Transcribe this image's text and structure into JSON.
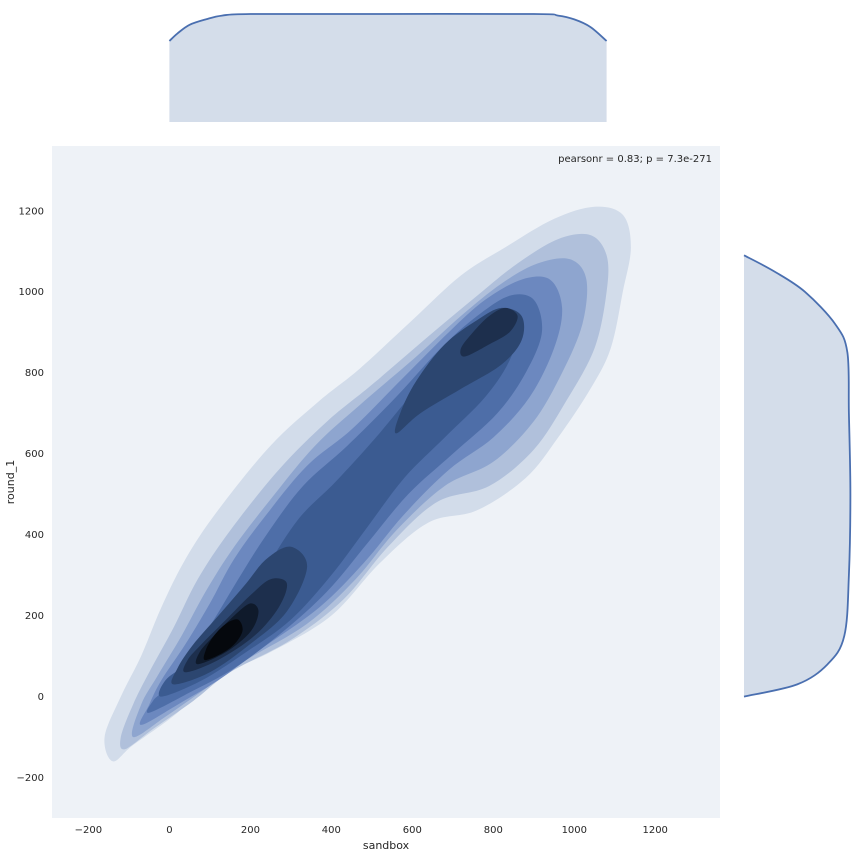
{
  "chart_data": {
    "type": "kde-joint",
    "annotation": "pearsonr = 0.83; p = 7.3e-271",
    "xlabel": "sandbox",
    "ylabel": "round_1",
    "xlim": [
      -290,
      1360
    ],
    "ylim": [
      -300,
      1360
    ],
    "x_ticks": [
      -200,
      0,
      200,
      400,
      600,
      800,
      1000,
      1200
    ],
    "y_ticks": [
      -200,
      0,
      200,
      400,
      600,
      800,
      1000,
      1200
    ],
    "x_tick_labels": [
      "−200",
      "0",
      "200",
      "400",
      "600",
      "800",
      "1000",
      "1200"
    ],
    "y_tick_labels": [
      "−200",
      "0",
      "200",
      "400",
      "600",
      "800",
      "1000",
      "1200"
    ],
    "grid": false,
    "plot_background": "#eef2f7",
    "contour_colors": [
      "#d2dcea",
      "#b0c0db",
      "#8ea5cf",
      "#6c88bf",
      "#4e6ea8",
      "#3b5b91",
      "#2c4670",
      "#1d2f4d",
      "#0f1a2b",
      "#05080d"
    ],
    "line_color": "#4a6fb0",
    "marginal_fill": "#d4ddea",
    "contour_levels": [
      {
        "level": 1,
        "points": [
          [
            -140,
            -160
          ],
          [
            -90,
            -120
          ],
          [
            20,
            -40
          ],
          [
            100,
            40
          ],
          [
            250,
            110
          ],
          [
            400,
            200
          ],
          [
            520,
            330
          ],
          [
            640,
            430
          ],
          [
            760,
            460
          ],
          [
            880,
            540
          ],
          [
            960,
            640
          ],
          [
            1040,
            760
          ],
          [
            1090,
            860
          ],
          [
            1120,
            1000
          ],
          [
            1140,
            1110
          ],
          [
            1120,
            1190
          ],
          [
            1050,
            1210
          ],
          [
            950,
            1180
          ],
          [
            830,
            1110
          ],
          [
            720,
            1040
          ],
          [
            600,
            930
          ],
          [
            470,
            810
          ],
          [
            370,
            730
          ],
          [
            250,
            620
          ],
          [
            120,
            460
          ],
          [
            40,
            340
          ],
          [
            -20,
            220
          ],
          [
            -70,
            100
          ],
          [
            -120,
            0
          ],
          [
            -160,
            -100
          ]
        ]
      },
      {
        "level": 2,
        "points": [
          [
            -110,
            -130
          ],
          [
            -40,
            -80
          ],
          [
            60,
            -10
          ],
          [
            150,
            60
          ],
          [
            300,
            140
          ],
          [
            430,
            240
          ],
          [
            540,
            370
          ],
          [
            660,
            480
          ],
          [
            790,
            520
          ],
          [
            900,
            610
          ],
          [
            980,
            730
          ],
          [
            1050,
            860
          ],
          [
            1080,
            1000
          ],
          [
            1080,
            1090
          ],
          [
            1040,
            1140
          ],
          [
            960,
            1130
          ],
          [
            860,
            1070
          ],
          [
            760,
            990
          ],
          [
            640,
            890
          ],
          [
            500,
            770
          ],
          [
            390,
            680
          ],
          [
            270,
            560
          ],
          [
            150,
            410
          ],
          [
            70,
            290
          ],
          [
            10,
            170
          ],
          [
            -50,
            60
          ],
          [
            -90,
            -20
          ],
          [
            -120,
            -100
          ]
        ]
      },
      {
        "level": 3,
        "points": [
          [
            -90,
            -100
          ],
          [
            -10,
            -50
          ],
          [
            90,
            20
          ],
          [
            190,
            90
          ],
          [
            340,
            180
          ],
          [
            460,
            290
          ],
          [
            560,
            410
          ],
          [
            680,
            520
          ],
          [
            800,
            580
          ],
          [
            900,
            680
          ],
          [
            970,
            800
          ],
          [
            1020,
            920
          ],
          [
            1030,
            1030
          ],
          [
            990,
            1080
          ],
          [
            910,
            1070
          ],
          [
            820,
            1020
          ],
          [
            720,
            940
          ],
          [
            610,
            840
          ],
          [
            470,
            720
          ],
          [
            360,
            620
          ],
          [
            260,
            500
          ],
          [
            160,
            370
          ],
          [
            90,
            260
          ],
          [
            30,
            150
          ],
          [
            -30,
            50
          ],
          [
            -70,
            -20
          ]
        ]
      },
      {
        "level": 4,
        "points": [
          [
            -70,
            -70
          ],
          [
            20,
            -20
          ],
          [
            120,
            40
          ],
          [
            230,
            120
          ],
          [
            370,
            220
          ],
          [
            480,
            330
          ],
          [
            580,
            450
          ],
          [
            690,
            560
          ],
          [
            800,
            640
          ],
          [
            890,
            740
          ],
          [
            950,
            860
          ],
          [
            970,
            960
          ],
          [
            940,
            1030
          ],
          [
            870,
            1030
          ],
          [
            780,
            980
          ],
          [
            690,
            900
          ],
          [
            580,
            790
          ],
          [
            450,
            660
          ],
          [
            340,
            570
          ],
          [
            240,
            450
          ],
          [
            160,
            340
          ],
          [
            100,
            230
          ],
          [
            40,
            130
          ],
          [
            -20,
            40
          ],
          [
            -50,
            -20
          ]
        ]
      },
      {
        "level": 5,
        "points": [
          [
            -50,
            -40
          ],
          [
            50,
            10
          ],
          [
            160,
            70
          ],
          [
            280,
            160
          ],
          [
            390,
            260
          ],
          [
            490,
            380
          ],
          [
            590,
            500
          ],
          [
            700,
            600
          ],
          [
            810,
            700
          ],
          [
            880,
            800
          ],
          [
            920,
            900
          ],
          [
            900,
            980
          ],
          [
            840,
            990
          ],
          [
            760,
            940
          ],
          [
            670,
            860
          ],
          [
            560,
            740
          ],
          [
            440,
            620
          ],
          [
            330,
            520
          ],
          [
            240,
            400
          ],
          [
            170,
            290
          ],
          [
            110,
            190
          ],
          [
            50,
            100
          ],
          [
            -10,
            20
          ],
          [
            -40,
            -10
          ]
        ]
      },
      {
        "level": 6,
        "points": [
          [
            -20,
            0
          ],
          [
            80,
            40
          ],
          [
            190,
            110
          ],
          [
            300,
            190
          ],
          [
            400,
            300
          ],
          [
            490,
            420
          ],
          [
            580,
            540
          ],
          [
            680,
            640
          ],
          [
            780,
            740
          ],
          [
            840,
            830
          ],
          [
            860,
            910
          ],
          [
            830,
            950
          ],
          [
            770,
            930
          ],
          [
            700,
            860
          ],
          [
            610,
            760
          ],
          [
            510,
            640
          ],
          [
            410,
            530
          ],
          [
            320,
            440
          ],
          [
            240,
            320
          ],
          [
            180,
            230
          ],
          [
            110,
            150
          ],
          [
            40,
            80
          ],
          [
            -10,
            40
          ]
        ]
      },
      {
        "level": 7,
        "points": [
          [
            10,
            30
          ],
          [
            100,
            60
          ],
          [
            200,
            130
          ],
          [
            290,
            210
          ],
          [
            340,
            320
          ],
          [
            300,
            370
          ],
          [
            240,
            340
          ],
          [
            190,
            280
          ],
          [
            130,
            210
          ],
          [
            60,
            130
          ],
          [
            20,
            70
          ]
        ]
      },
      {
        "level": 7,
        "points": [
          [
            560,
            650
          ],
          [
            620,
            700
          ],
          [
            720,
            760
          ],
          [
            820,
            820
          ],
          [
            870,
            880
          ],
          [
            870,
            940
          ],
          [
            820,
            960
          ],
          [
            760,
            930
          ],
          [
            680,
            870
          ],
          [
            610,
            780
          ],
          [
            570,
            700
          ]
        ]
      },
      {
        "level": 8,
        "points": [
          [
            40,
            60
          ],
          [
            120,
            90
          ],
          [
            210,
            150
          ],
          [
            270,
            220
          ],
          [
            290,
            280
          ],
          [
            250,
            290
          ],
          [
            200,
            250
          ],
          [
            140,
            190
          ],
          [
            80,
            130
          ],
          [
            45,
            90
          ]
        ]
      },
      {
        "level": 8,
        "points": [
          [
            730,
            840
          ],
          [
            790,
            870
          ],
          [
            840,
            900
          ],
          [
            860,
            940
          ],
          [
            830,
            960
          ],
          [
            790,
            940
          ],
          [
            750,
            900
          ],
          [
            720,
            860
          ]
        ]
      },
      {
        "level": 9,
        "points": [
          [
            70,
            80
          ],
          [
            140,
            110
          ],
          [
            200,
            160
          ],
          [
            220,
            210
          ],
          [
            200,
            230
          ],
          [
            160,
            200
          ],
          [
            110,
            150
          ],
          [
            75,
            110
          ]
        ]
      },
      {
        "level": 10,
        "points": [
          [
            90,
            90
          ],
          [
            150,
            120
          ],
          [
            180,
            160
          ],
          [
            170,
            190
          ],
          [
            140,
            180
          ],
          [
            110,
            150
          ],
          [
            90,
            115
          ]
        ]
      }
    ],
    "marginal_x": {
      "points": [
        [
          0,
          0.75
        ],
        [
          20,
          0.82
        ],
        [
          50,
          0.9
        ],
        [
          90,
          0.95
        ],
        [
          130,
          0.985
        ],
        [
          200,
          1.0
        ],
        [
          500,
          1.0
        ],
        [
          900,
          1.0
        ],
        [
          960,
          0.985
        ],
        [
          1000,
          0.95
        ],
        [
          1040,
          0.88
        ],
        [
          1080,
          0.75
        ]
      ]
    },
    "marginal_y": {
      "points": [
        [
          1090,
          0
        ],
        [
          1050,
          0.2
        ],
        [
          1000,
          0.4
        ],
        [
          920,
          0.6
        ],
        [
          850,
          0.68
        ],
        [
          700,
          0.69
        ],
        [
          500,
          0.7
        ],
        [
          300,
          0.69
        ],
        [
          150,
          0.66
        ],
        [
          80,
          0.55
        ],
        [
          30,
          0.35
        ],
        [
          0,
          0
        ]
      ]
    }
  }
}
